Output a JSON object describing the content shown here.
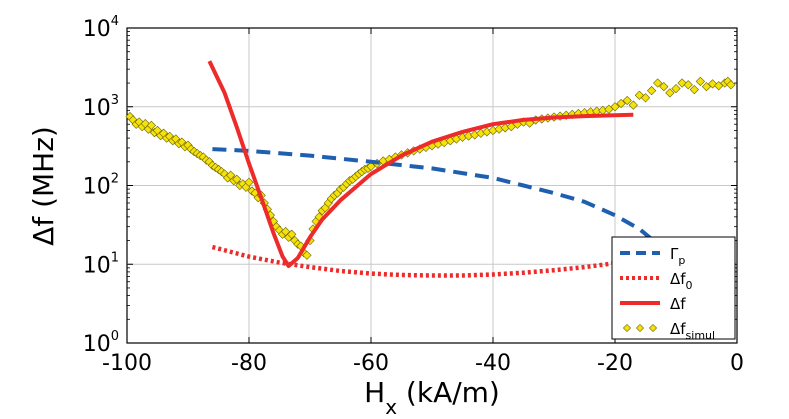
{
  "chart_data": {
    "type": "line",
    "xlabel": {
      "main": "H",
      "sub": "x",
      "rest": " (kA/m)"
    },
    "ylabel": "Δf (MHz)",
    "xlim": [
      -100,
      0
    ],
    "ylim": [
      1,
      10000
    ],
    "yscale": "log",
    "grid": true,
    "legend_position": "lower-right",
    "x_ticks": [
      {
        "value": -100,
        "label": "-100"
      },
      {
        "value": -80,
        "label": "-80"
      },
      {
        "value": -60,
        "label": "-60"
      },
      {
        "value": -40,
        "label": "-40"
      },
      {
        "value": -20,
        "label": "-20"
      },
      {
        "value": 0,
        "label": "0"
      }
    ],
    "y_ticks": [
      {
        "value": 1,
        "base": "10",
        "exp": "0"
      },
      {
        "value": 10,
        "base": "10",
        "exp": "1"
      },
      {
        "value": 100,
        "base": "10",
        "exp": "2"
      },
      {
        "value": 1000,
        "base": "10",
        "exp": "3"
      },
      {
        "value": 10000,
        "base": "10",
        "exp": "4"
      }
    ],
    "series": [
      {
        "name": "Γp",
        "legend_main": "Γ",
        "legend_sub": "p",
        "style": "dashed",
        "color": "#1f5fb0",
        "points": [
          [
            -86,
            290
          ],
          [
            -80,
            275
          ],
          [
            -70,
            240
          ],
          [
            -60,
            200
          ],
          [
            -50,
            165
          ],
          [
            -40,
            125
          ],
          [
            -35,
            100
          ],
          [
            -30,
            80
          ],
          [
            -25,
            62
          ],
          [
            -20,
            42
          ],
          [
            -16,
            28
          ],
          [
            -13,
            18
          ]
        ]
      },
      {
        "name": "Δf0",
        "legend_main": "Δf",
        "legend_sub": "0",
        "style": "dotted",
        "color": "#ee2b2b",
        "points": [
          [
            -86,
            16.5
          ],
          [
            -80,
            12.5
          ],
          [
            -75,
            10.5
          ],
          [
            -70,
            9.2
          ],
          [
            -65,
            8.2
          ],
          [
            -60,
            7.6
          ],
          [
            -55,
            7.3
          ],
          [
            -50,
            7.2
          ],
          [
            -45,
            7.2
          ],
          [
            -40,
            7.4
          ],
          [
            -35,
            7.8
          ],
          [
            -30,
            8.4
          ],
          [
            -25,
            9.2
          ],
          [
            -20,
            10.3
          ],
          [
            -17,
            11
          ]
        ]
      },
      {
        "name": "Δf",
        "legend_main": "Δf",
        "legend_sub": "",
        "style": "solid",
        "color": "#ee2b2b",
        "points": [
          [
            -86.5,
            3800
          ],
          [
            -84,
            1500
          ],
          [
            -82,
            550
          ],
          [
            -80,
            190
          ],
          [
            -78,
            70
          ],
          [
            -76,
            25
          ],
          [
            -74.5,
            12.5
          ],
          [
            -73.5,
            9.5
          ],
          [
            -72,
            12
          ],
          [
            -70,
            22
          ],
          [
            -68,
            37
          ],
          [
            -65,
            65
          ],
          [
            -60,
            140
          ],
          [
            -55,
            240
          ],
          [
            -50,
            360
          ],
          [
            -45,
            480
          ],
          [
            -40,
            600
          ],
          [
            -35,
            680
          ],
          [
            -30,
            730
          ],
          [
            -25,
            760
          ],
          [
            -20,
            780
          ],
          [
            -17,
            790
          ]
        ]
      },
      {
        "name": "Δfsimul",
        "legend_main": "Δf",
        "legend_sub": "simul",
        "style": "markers",
        "color": "#f5e20a",
        "points": [
          [
            -99.5,
            750
          ],
          [
            -99,
            680
          ],
          [
            -98.5,
            600
          ],
          [
            -98,
            640
          ],
          [
            -97.5,
            560
          ],
          [
            -97,
            610
          ],
          [
            -96.5,
            520
          ],
          [
            -96,
            580
          ],
          [
            -95.5,
            470
          ],
          [
            -95,
            500
          ],
          [
            -94.5,
            430
          ],
          [
            -94,
            460
          ],
          [
            -93.5,
            400
          ],
          [
            -93,
            420
          ],
          [
            -92.5,
            370
          ],
          [
            -92,
            390
          ],
          [
            -91.5,
            340
          ],
          [
            -91,
            355
          ],
          [
            -90.5,
            310
          ],
          [
            -90,
            325
          ],
          [
            -89.5,
            290
          ],
          [
            -89,
            270
          ],
          [
            -88.5,
            255
          ],
          [
            -88,
            240
          ],
          [
            -87.5,
            230
          ],
          [
            -87,
            210
          ],
          [
            -86.5,
            200
          ],
          [
            -86,
            180
          ],
          [
            -85.5,
            170
          ],
          [
            -85,
            160
          ],
          [
            -84.5,
            150
          ],
          [
            -84,
            140
          ],
          [
            -83.5,
            125
          ],
          [
            -83,
            135
          ],
          [
            -82.5,
            115
          ],
          [
            -82,
            120
          ],
          [
            -81.5,
            100
          ],
          [
            -81,
            105
          ],
          [
            -80.5,
            95
          ],
          [
            -80,
            110
          ],
          [
            -79.5,
            85
          ],
          [
            -79,
            80
          ],
          [
            -78.5,
            70
          ],
          [
            -78,
            75
          ],
          [
            -77.5,
            60
          ],
          [
            -77,
            50
          ],
          [
            -76.5,
            42
          ],
          [
            -76,
            35
          ],
          [
            -75.5,
            30
          ],
          [
            -75,
            27
          ],
          [
            -74.5,
            24
          ],
          [
            -74,
            26
          ],
          [
            -73.5,
            22
          ],
          [
            -73,
            24
          ],
          [
            -72.5,
            20
          ],
          [
            -72,
            18
          ],
          [
            -71.5,
            17
          ],
          [
            -71,
            14
          ],
          [
            -70.5,
            13
          ],
          [
            -70,
            20
          ],
          [
            -69.5,
            28
          ],
          [
            -69,
            35
          ],
          [
            -68.5,
            40
          ],
          [
            -68,
            48
          ],
          [
            -67.5,
            52
          ],
          [
            -67,
            60
          ],
          [
            -66.5,
            68
          ],
          [
            -66,
            75
          ],
          [
            -65.5,
            80
          ],
          [
            -65,
            90
          ],
          [
            -64.5,
            95
          ],
          [
            -64,
            105
          ],
          [
            -63.5,
            115
          ],
          [
            -63,
            120
          ],
          [
            -62.5,
            130
          ],
          [
            -62,
            140
          ],
          [
            -61.5,
            150
          ],
          [
            -61,
            160
          ],
          [
            -60.5,
            165
          ],
          [
            -60,
            175
          ],
          [
            -59,
            190
          ],
          [
            -58,
            205
          ],
          [
            -57,
            215
          ],
          [
            -56,
            230
          ],
          [
            -55,
            245
          ],
          [
            -54,
            260
          ],
          [
            -53,
            275
          ],
          [
            -52,
            290
          ],
          [
            -51,
            305
          ],
          [
            -50,
            320
          ],
          [
            -49,
            335
          ],
          [
            -48,
            350
          ],
          [
            -47,
            370
          ],
          [
            -46,
            390
          ],
          [
            -45,
            410
          ],
          [
            -44,
            425
          ],
          [
            -43,
            440
          ],
          [
            -42,
            460
          ],
          [
            -41,
            480
          ],
          [
            -40,
            500
          ],
          [
            -39,
            520
          ],
          [
            -38,
            540
          ],
          [
            -37,
            560
          ],
          [
            -36,
            600
          ],
          [
            -35,
            640
          ],
          [
            -34,
            620
          ],
          [
            -33,
            680
          ],
          [
            -32,
            700
          ],
          [
            -31,
            720
          ],
          [
            -30,
            740
          ],
          [
            -29,
            760
          ],
          [
            -28,
            780
          ],
          [
            -27,
            800
          ],
          [
            -26,
            820
          ],
          [
            -25,
            840
          ],
          [
            -24,
            860
          ],
          [
            -23,
            880
          ],
          [
            -22,
            900
          ],
          [
            -21,
            930
          ],
          [
            -20,
            1000
          ],
          [
            -19,
            1100
          ],
          [
            -18,
            1200
          ],
          [
            -17,
            1050
          ],
          [
            -16,
            1400
          ],
          [
            -15,
            1300
          ],
          [
            -14,
            1600
          ],
          [
            -13,
            2000
          ],
          [
            -12,
            1800
          ],
          [
            -11,
            1500
          ],
          [
            -10,
            1700
          ],
          [
            -9,
            2000
          ],
          [
            -8,
            1900
          ],
          [
            -7,
            1650
          ],
          [
            -6,
            2100
          ],
          [
            -5,
            1800
          ],
          [
            -4,
            1950
          ],
          [
            -3,
            1850
          ],
          [
            -2,
            2000
          ],
          [
            -1.5,
            2100
          ],
          [
            -1,
            1900
          ]
        ]
      }
    ]
  }
}
